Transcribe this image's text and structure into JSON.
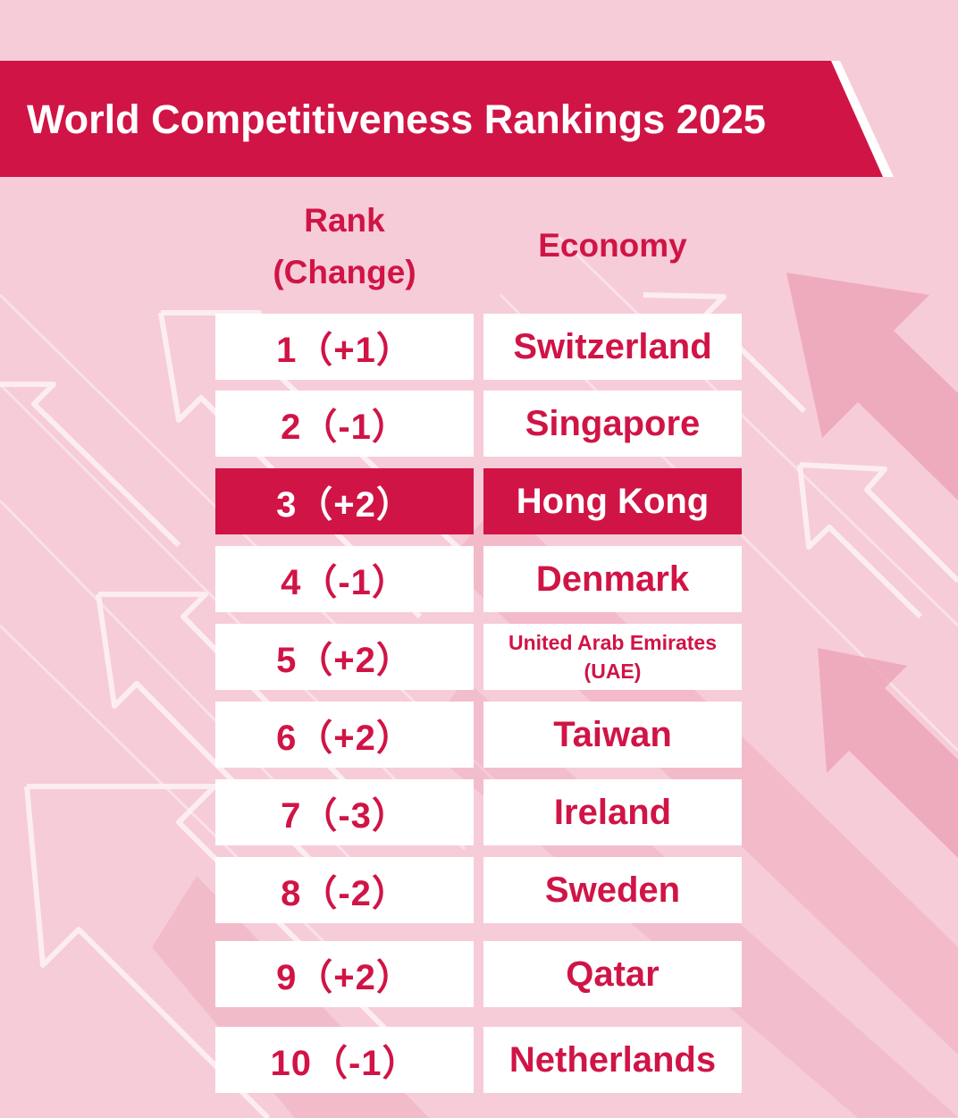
{
  "title": "World Competitiveness Rankings 2025",
  "colors": {
    "background": "#f6ccd8",
    "accent": "#d01446",
    "cell": "#ffffff"
  },
  "headers": {
    "rank_line1": "Rank",
    "rank_line2": "(Change)",
    "economy": "Economy"
  },
  "rows": [
    {
      "rank": "1（+1）",
      "economy": "Switzerland"
    },
    {
      "rank": "2（-1）",
      "economy": "Singapore"
    },
    {
      "rank": "3（+2）",
      "economy": "Hong Kong",
      "highlight": true
    },
    {
      "rank": "4（-1）",
      "economy": "Denmark"
    },
    {
      "rank": "5（+2）",
      "economy": "United Arab Emirates (UAE)"
    },
    {
      "rank": "6（+2）",
      "economy": "Taiwan"
    },
    {
      "rank": "7（-3）",
      "economy": "Ireland"
    },
    {
      "rank": "8（-2）",
      "economy": "Sweden"
    },
    {
      "rank": "9（+2）",
      "economy": "Qatar"
    },
    {
      "rank": "10（-1）",
      "economy": "Netherlands"
    }
  ],
  "icons": [
    "up-arrow-icon"
  ]
}
